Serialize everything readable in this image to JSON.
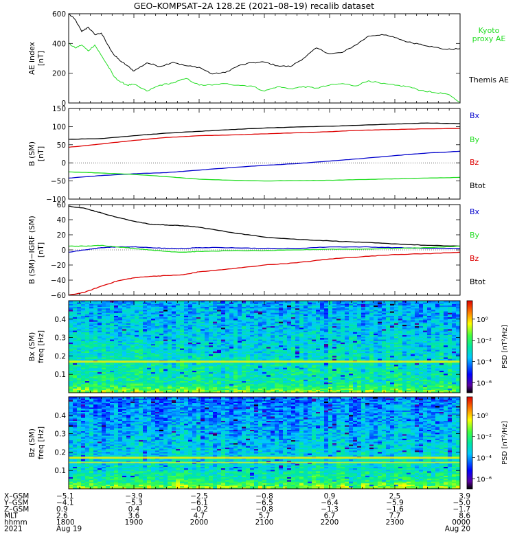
{
  "title": "GEO–KOMPSAT–2A 128.2E (2021–08–19) recalib dataset",
  "colors": {
    "black": "#000000",
    "green": "#22dd22",
    "red": "#dd0000",
    "blue": "#0000cc"
  },
  "chart_data": [
    {
      "type": "line",
      "id": "ae",
      "ylabel": "AE index",
      "yunit": "[nT]",
      "ylim": [
        0,
        600
      ],
      "yticks": [
        "0",
        "200",
        "400",
        "600"
      ],
      "x": [
        0,
        0.1,
        0.2,
        0.3,
        0.4,
        0.5,
        0.6,
        0.7,
        0.8,
        0.9,
        1,
        1.2,
        1.4,
        1.6,
        1.8,
        2,
        2.2,
        2.4,
        2.6,
        2.8,
        3,
        3.2,
        3.4,
        3.6,
        3.8,
        4,
        4.2,
        4.4,
        4.6,
        4.8,
        5,
        5.2,
        5.4,
        5.6,
        5.8,
        6
      ],
      "series": [
        {
          "name": "Themis AE",
          "color": "black",
          "values": [
            600,
            560,
            480,
            510,
            460,
            470,
            390,
            320,
            280,
            250,
            215,
            270,
            245,
            275,
            250,
            240,
            195,
            205,
            250,
            270,
            275,
            250,
            245,
            300,
            370,
            330,
            340,
            390,
            450,
            460,
            440,
            410,
            395,
            375,
            360,
            365
          ]
        },
        {
          "name": "Kyoto proxy AE",
          "color": "green",
          "values": [
            400,
            370,
            390,
            350,
            390,
            320,
            250,
            175,
            140,
            120,
            125,
            80,
            120,
            135,
            165,
            120,
            120,
            130,
            120,
            115,
            80,
            110,
            95,
            110,
            100,
            120,
            130,
            115,
            150,
            130,
            120,
            110,
            85,
            70,
            60,
            5
          ]
        }
      ],
      "legend": [
        "Kyoto proxy AE",
        "Themis AE"
      ]
    },
    {
      "type": "line",
      "id": "bsm",
      "ylabel": "B (SM)",
      "yunit": "[nT]",
      "ylim": [
        -100,
        150
      ],
      "yticks": [
        "−100",
        "−50",
        "0",
        "50",
        "100",
        "150"
      ],
      "x": [
        0,
        0.5,
        1,
        1.5,
        2,
        2.5,
        3,
        3.5,
        4,
        4.5,
        5,
        5.5,
        6
      ],
      "series": [
        {
          "name": "Btot",
          "color": "black",
          "values": [
            65,
            67,
            75,
            82,
            87,
            92,
            96,
            99,
            101,
            104,
            107,
            110,
            108
          ]
        },
        {
          "name": "Bz",
          "color": "red",
          "values": [
            43,
            52,
            62,
            70,
            75,
            77,
            80,
            83,
            86,
            90,
            92,
            94,
            95
          ]
        },
        {
          "name": "Bx",
          "color": "blue",
          "values": [
            -42,
            -35,
            -30,
            -27,
            -20,
            -13,
            -7,
            -2,
            5,
            12,
            20,
            27,
            32
          ]
        },
        {
          "name": "By",
          "color": "green",
          "values": [
            -25,
            -28,
            -32,
            -38,
            -45,
            -48,
            -50,
            -49,
            -48,
            -46,
            -44,
            -42,
            -40
          ]
        }
      ],
      "legend": [
        "Bx",
        "By",
        "Bz",
        "Btot"
      ]
    },
    {
      "type": "line",
      "id": "bigrf",
      "ylabel": "B (SM)−IGRF (SM)",
      "yunit": "[nT]",
      "ylim": [
        -60,
        60
      ],
      "yticks": [
        "−60",
        "−40",
        "−20",
        "0",
        "20",
        "40",
        "60"
      ],
      "x": [
        0,
        0.25,
        0.5,
        0.75,
        1,
        1.25,
        1.5,
        1.75,
        2,
        2.5,
        3,
        3.5,
        4,
        4.5,
        5,
        5.5,
        6
      ],
      "series": [
        {
          "name": "Btot",
          "color": "black",
          "values": [
            58,
            55,
            49,
            43,
            38,
            34,
            33,
            32,
            30,
            23,
            17,
            14,
            12,
            10,
            8,
            6,
            5
          ]
        },
        {
          "name": "Bz",
          "color": "red",
          "values": [
            -60,
            -56,
            -48,
            -41,
            -37,
            -35,
            -34,
            -33,
            -29,
            -25,
            -20,
            -17,
            -12,
            -9,
            -6,
            -5,
            -3
          ]
        },
        {
          "name": "Bx",
          "color": "blue",
          "values": [
            -3,
            0,
            3,
            4,
            4,
            3,
            2,
            2,
            3,
            3,
            2,
            2,
            4,
            4,
            3,
            2,
            2
          ]
        },
        {
          "name": "By",
          "color": "green",
          "values": [
            5,
            5,
            6,
            4,
            2,
            0,
            -2,
            -3,
            -2,
            -1,
            -1,
            0,
            1,
            1,
            2,
            3,
            5
          ]
        }
      ],
      "legend": [
        "Bx",
        "By",
        "Bz",
        "Btot"
      ]
    },
    {
      "type": "heatmap",
      "id": "spec_bx",
      "ylabel": "Bx (SM)",
      "yunit": "freq [Hz]",
      "ylim": [
        0,
        0.5
      ],
      "yticks": [
        "0.1",
        "0.2",
        "0.3",
        "0.4"
      ],
      "colorbar": {
        "label": "PSD [nT²/Hz]",
        "ticks": [
          "10⁰",
          "10⁻²",
          "10⁻⁴",
          "10⁻⁶"
        ]
      },
      "line_freq": 0.167
    },
    {
      "type": "heatmap",
      "id": "spec_bz",
      "ylabel": "Bz (SM)",
      "yunit": "freq [Hz]",
      "ylim": [
        0,
        0.5
      ],
      "yticks": [
        "0.1",
        "0.2",
        "0.3",
        "0.4"
      ],
      "colorbar": {
        "label": "PSD [nT²/Hz]",
        "ticks": [
          "10⁰",
          "10⁻²",
          "10⁻⁴",
          "10⁻⁶"
        ]
      },
      "line_freq": 0.167
    }
  ],
  "xaxis": {
    "rows": [
      {
        "label": "X–GSM",
        "values": [
          "−5.1",
          "−3.9",
          "−2.5",
          "−0.8",
          "0.9",
          "2.5",
          "3.9"
        ]
      },
      {
        "label": "Y–GSM",
        "values": [
          "−4.1",
          "−5.3",
          "−6.1",
          "−6.5",
          "−6.4",
          "−5.9",
          "−5.0"
        ]
      },
      {
        "label": "Z–GSM",
        "values": [
          "0.9",
          "0.4",
          "−0.2",
          "−0.8",
          "−1.3",
          "−1.6",
          "−1.7"
        ]
      },
      {
        "label": "MLT",
        "values": [
          "2.6",
          "3.6",
          "4.7",
          "5.7",
          "6.7",
          "7.7",
          "8.6"
        ]
      },
      {
        "label": "hhmm",
        "values": [
          "1800",
          "1900",
          "2000",
          "2100",
          "2200",
          "2300",
          "0000"
        ]
      },
      {
        "label": "2021",
        "values": [
          "Aug 19",
          "",
          "",
          "",
          "",
          "",
          "Aug 20"
        ]
      }
    ]
  }
}
